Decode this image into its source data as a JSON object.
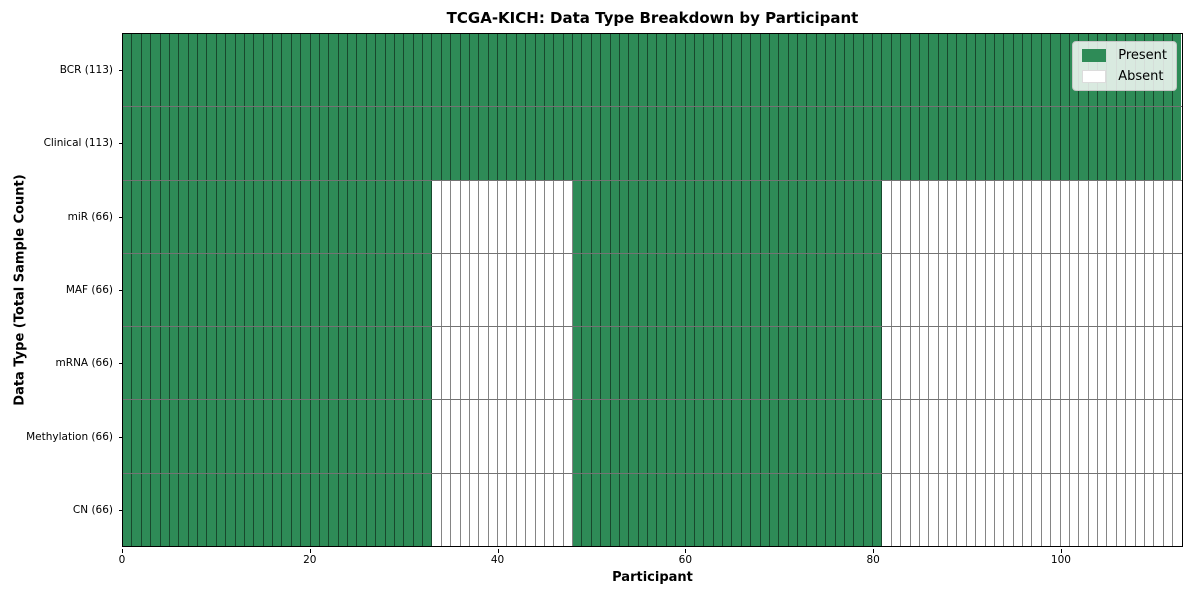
{
  "chart_data": {
    "type": "heatmap",
    "title": "TCGA-KICH: Data Type Breakdown by Participant",
    "xlabel": "Participant",
    "ylabel": "Data Type (Total Sample Count)",
    "n_participants": 113,
    "x_min": 0,
    "x_max": 113,
    "x_ticks": [
      0,
      20,
      40,
      60,
      80,
      100
    ],
    "grid": false,
    "legend_position": "upper right",
    "legend": {
      "entries": [
        {
          "label": "Present",
          "color": "#2E8B57"
        },
        {
          "label": "Absent",
          "color": "#FFFFFF"
        }
      ]
    },
    "colors": {
      "present": "#2E8B57",
      "absent": "#FFFFFF"
    },
    "rows": [
      {
        "key": "bcr",
        "label": "BCR (113)",
        "present_count": 113,
        "present_ranges": [
          [
            0,
            112
          ]
        ]
      },
      {
        "key": "clinical",
        "label": "Clinical (113)",
        "present_count": 113,
        "present_ranges": [
          [
            0,
            112
          ]
        ]
      },
      {
        "key": "mir",
        "label": "miR (66)",
        "present_count": 66,
        "present_ranges": [
          [
            0,
            32
          ],
          [
            48,
            80
          ]
        ]
      },
      {
        "key": "maf",
        "label": "MAF (66)",
        "present_count": 66,
        "present_ranges": [
          [
            0,
            32
          ],
          [
            48,
            80
          ]
        ]
      },
      {
        "key": "mrna",
        "label": "mRNA (66)",
        "present_count": 66,
        "present_ranges": [
          [
            0,
            32
          ],
          [
            48,
            80
          ]
        ]
      },
      {
        "key": "methylation",
        "label": "Methylation (66)",
        "present_count": 66,
        "present_ranges": [
          [
            0,
            32
          ],
          [
            48,
            80
          ]
        ]
      },
      {
        "key": "cn",
        "label": "CN (66)",
        "present_count": 66,
        "present_ranges": [
          [
            0,
            32
          ],
          [
            48,
            80
          ]
        ]
      }
    ]
  }
}
